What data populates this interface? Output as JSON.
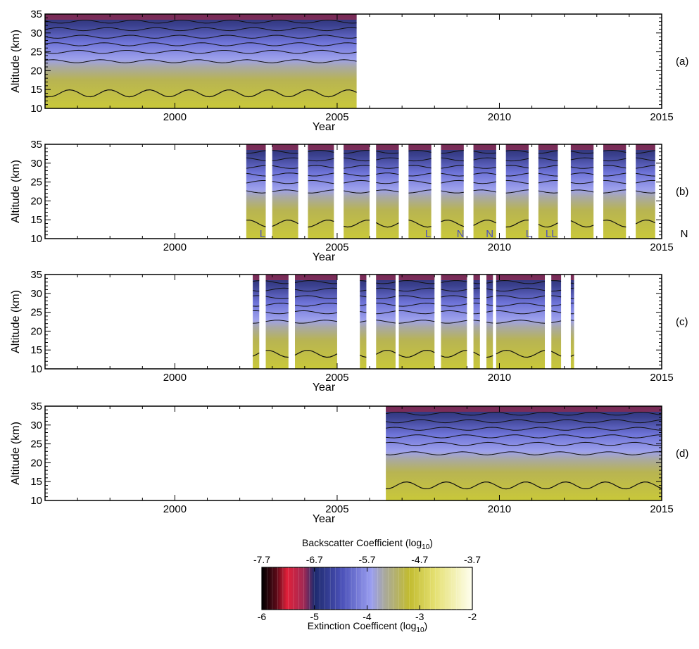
{
  "chart_data": {
    "type": "heatmap",
    "x_tick_labels": [
      "2000",
      "2005",
      "2010",
      "2015"
    ],
    "y_tick_labels": [
      "10",
      "15",
      "20",
      "25",
      "30",
      "35"
    ],
    "xlabel": "Year",
    "ylabel": "Altitude (km)",
    "xlim": [
      1996,
      2015
    ],
    "ylim": [
      10,
      35
    ],
    "panels": [
      {
        "tag": "(a)",
        "coverage": [
          [
            1996.0,
            2005.6
          ]
        ],
        "annotations": []
      },
      {
        "tag": "(b)",
        "coverage": [
          [
            2002.2,
            2002.8
          ],
          [
            2003.0,
            2003.8
          ],
          [
            2004.1,
            2004.9
          ],
          [
            2005.2,
            2006.0
          ],
          [
            2006.2,
            2006.9
          ],
          [
            2007.2,
            2007.9
          ],
          [
            2008.2,
            2008.9
          ],
          [
            2009.2,
            2009.9
          ],
          [
            2010.2,
            2010.9
          ],
          [
            2011.2,
            2011.8
          ],
          [
            2012.2,
            2012.9
          ],
          [
            2013.2,
            2013.9
          ],
          [
            2014.2,
            2014.8
          ]
        ],
        "annotations": [
          {
            "text": "L",
            "x": 2002.7
          },
          {
            "text": "L",
            "x": 2007.8
          },
          {
            "text": "N",
            "x": 2008.8
          },
          {
            "text": "N",
            "x": 2009.7
          },
          {
            "text": "L",
            "x": 2010.9
          },
          {
            "text": "LL",
            "x": 2011.6
          },
          {
            "text": "N",
            "x": 2015.7,
            "color": "black"
          }
        ]
      },
      {
        "tag": "(c)",
        "coverage": [
          [
            2002.4,
            2002.6
          ],
          [
            2002.8,
            2003.5
          ],
          [
            2003.7,
            2005.0
          ],
          [
            2005.7,
            2005.9
          ],
          [
            2006.2,
            2006.8
          ],
          [
            2006.9,
            2008.0
          ],
          [
            2008.2,
            2009.0
          ],
          [
            2009.2,
            2009.4
          ],
          [
            2009.6,
            2009.8
          ],
          [
            2009.9,
            2011.4
          ],
          [
            2011.6,
            2011.9
          ],
          [
            2012.2,
            2012.3
          ]
        ],
        "annotations": []
      },
      {
        "tag": "(d)",
        "coverage": [
          [
            2006.5,
            2015.0
          ]
        ],
        "annotations": []
      }
    ],
    "colorbar": {
      "top_title": "Backscatter Coefficient (log",
      "top_title_sub": "10",
      "top_title_end": ")",
      "top_ticks": [
        "-7.7",
        "-6.7",
        "-5.7",
        "-4.7",
        "-3.7"
      ],
      "bottom_title": "Extinction Coefficent (log",
      "bottom_title_sub": "10",
      "bottom_title_end": ")",
      "bottom_ticks": [
        "-6",
        "-5",
        "-4",
        "-3",
        "-2"
      ],
      "range": [
        -6,
        -2
      ],
      "colors": [
        "#000000",
        "#7a1020",
        "#e0203a",
        "#b02a50",
        "#1e2a6e",
        "#3a3f9a",
        "#6a70d8",
        "#9a9ef0",
        "#a6a6a0",
        "#b8b040",
        "#d4d430",
        "#f4f4a8",
        "#fffff0"
      ]
    }
  }
}
